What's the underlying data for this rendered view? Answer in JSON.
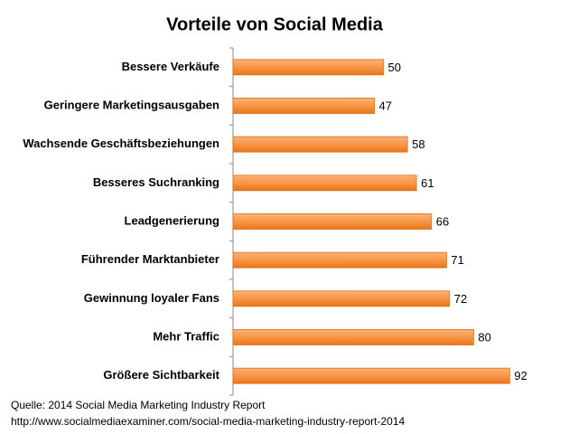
{
  "chart_data": {
    "type": "bar",
    "orientation": "horizontal",
    "title": "Vorteile von Social Media",
    "categories": [
      "Bessere Verkäufe",
      "Geringere Marketingsausgaben",
      "Wachsende Geschäftsbeziehungen",
      "Besseres Suchranking",
      "Leadgenerierung",
      "Führender Marktanbieter",
      "Gewinnung loyaler Fans",
      "Mehr Traffic",
      "Größere Sichtbarkeit"
    ],
    "values": [
      50,
      47,
      58,
      61,
      66,
      71,
      72,
      80,
      92
    ],
    "color": "#f79646",
    "xlim": [
      0,
      100
    ],
    "source": [
      "Quelle: 2014 Social Media Marketing Industry Report",
      "http://www.socialmediaexaminer.com/social-media-marketing-industry-report-2014"
    ]
  }
}
